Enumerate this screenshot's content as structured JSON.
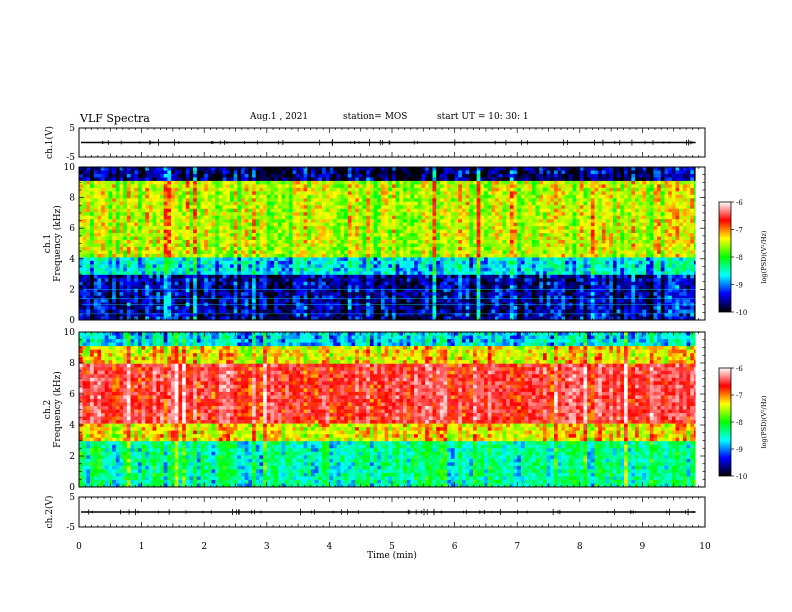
{
  "header": {
    "title": "VLF Spectra",
    "date": "Aug.1 , 2021",
    "station": "station= MOS",
    "start": "start UT = 10: 30: 1"
  },
  "panels": {
    "ch1_wave_label": "ch.1(V)",
    "ch1_spec_label": "ch.1\nFrequency (kHz)",
    "ch2_spec_label": "ch.2\nFrequency (kHz)",
    "ch2_wave_label": "ch.2(V)"
  },
  "colorbar": {
    "label": "log(PSD)(V²/Hz)",
    "ticks": [
      "-6",
      "-7",
      "-8",
      "-9",
      "-10"
    ],
    "colors": [
      "#ffffff",
      "#ff0000",
      "#ffff00",
      "#00ff00",
      "#00ffff",
      "#0000ff",
      "#000000"
    ]
  },
  "chart_data": [
    {
      "type": "line",
      "panel": "ch1 waveform",
      "ylabel": "ch.1(V)",
      "ylim": [
        -5,
        5
      ],
      "yticks": [
        "5",
        "-5"
      ],
      "xlim": [
        0,
        10
      ],
      "baseline_value": 0
    },
    {
      "type": "heatmap",
      "panel": "ch1 spectrogram",
      "ylabel": "ch.1 Frequency (kHz)",
      "xlim": [
        0,
        10
      ],
      "ylim": [
        0,
        10
      ],
      "yticks": [
        "0",
        "2",
        "4",
        "6",
        "8",
        "10"
      ],
      "bands": [
        {
          "f_low": 0,
          "f_high": 3,
          "level": -9.7
        },
        {
          "f_low": 3,
          "f_high": 4,
          "level": -9.0
        },
        {
          "f_low": 4,
          "f_high": 9,
          "level": -7.8
        },
        {
          "f_low": 9,
          "f_high": 10,
          "level": -9.8
        }
      ]
    },
    {
      "type": "heatmap",
      "panel": "ch2 spectrogram",
      "ylabel": "ch.2 Frequency (kHz)",
      "xlim": [
        0,
        10
      ],
      "ylim": [
        0,
        10
      ],
      "yticks": [
        "0",
        "2",
        "4",
        "6",
        "8",
        "10"
      ],
      "bands": [
        {
          "f_low": 0,
          "f_high": 3,
          "level": -8.7
        },
        {
          "f_low": 3,
          "f_high": 4,
          "level": -7.6
        },
        {
          "f_low": 4,
          "f_high": 8,
          "level": -6.8
        },
        {
          "f_low": 8,
          "f_high": 9,
          "level": -7.6
        },
        {
          "f_low": 9,
          "f_high": 10,
          "level": -9.0
        }
      ]
    },
    {
      "type": "line",
      "panel": "ch2 waveform",
      "ylabel": "ch.2(V)",
      "ylim": [
        -5,
        5
      ],
      "yticks": [
        "5",
        "-5"
      ],
      "xlim": [
        0,
        10
      ],
      "baseline_value": 0
    }
  ],
  "x_axis": {
    "label": "Time (min)",
    "ticks": [
      "0",
      "1",
      "2",
      "3",
      "4",
      "5",
      "6",
      "7",
      "8",
      "9",
      "10"
    ]
  }
}
